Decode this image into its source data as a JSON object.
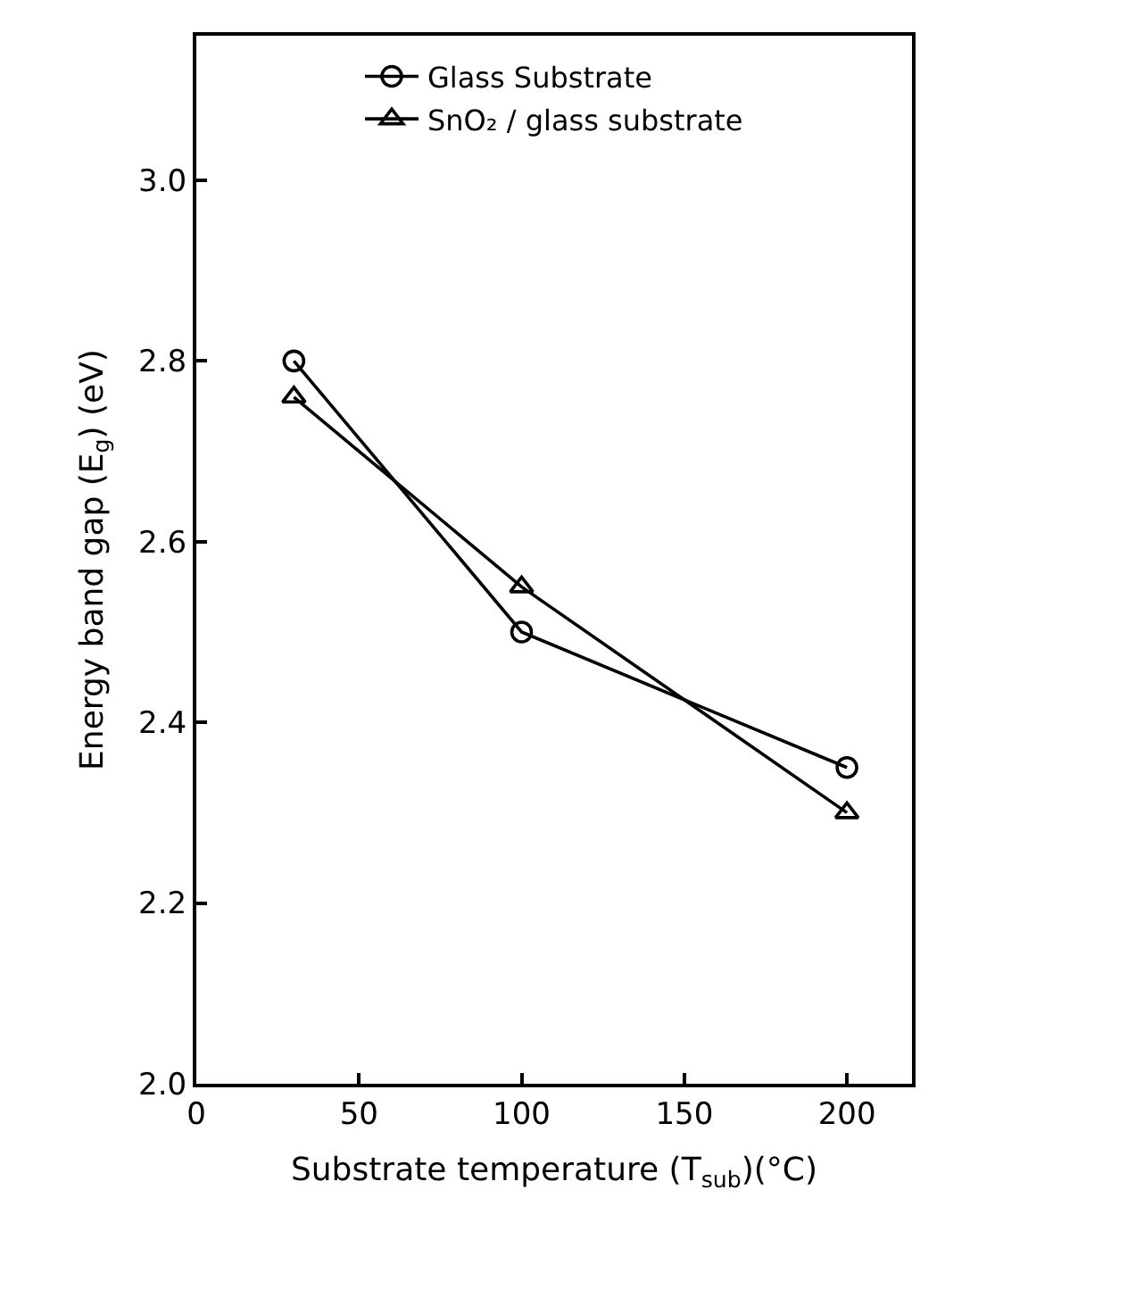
{
  "chart_data": {
    "type": "line",
    "xlabel": "Substrate temperature (T$_{sub}$)(°C)",
    "ylabel": "Energy band gap (E$_{g}$) (eV)",
    "xlim": [
      0,
      220
    ],
    "xticks": [
      0,
      50,
      100,
      150,
      200
    ],
    "ylim": [
      2.0,
      3.16
    ],
    "yticks": [
      {
        "value": 2.0,
        "label": "2.0"
      },
      {
        "value": 2.2,
        "label": "2.2"
      },
      {
        "value": 2.4,
        "label": "2.4"
      },
      {
        "value": 2.6,
        "label": "2.6"
      },
      {
        "value": 2.8,
        "label": "2.8"
      },
      {
        "value": 3.0,
        "label": "3.0"
      }
    ],
    "x": [
      30,
      100,
      200
    ],
    "series": [
      {
        "name": "Glass Substrate",
        "color": "#000000",
        "marker": "circle",
        "values": [
          2.8,
          2.5,
          2.35
        ]
      },
      {
        "name": "SnO₂ / glass substrate",
        "color": "#000000",
        "marker": "triangle",
        "values": [
          2.76,
          2.55,
          2.3
        ]
      }
    ],
    "legend": "top",
    "line_style": "solid"
  }
}
